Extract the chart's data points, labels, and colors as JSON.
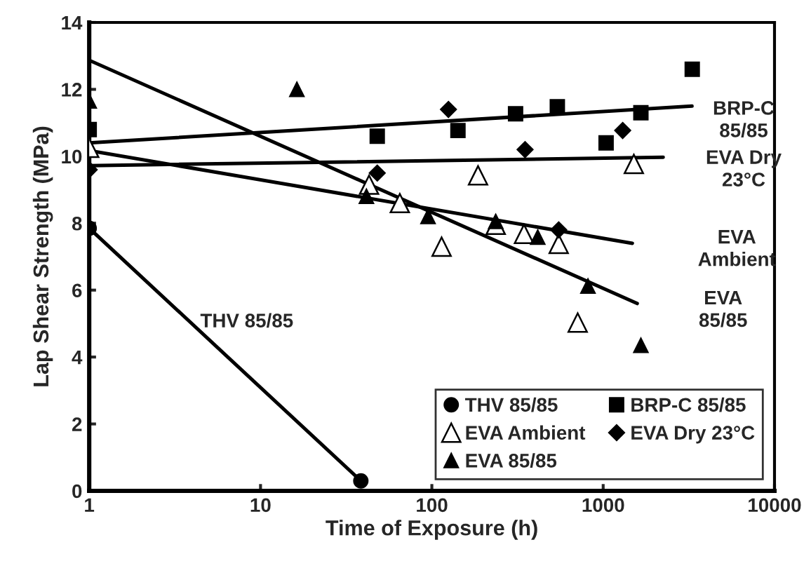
{
  "chart_data": {
    "type": "scatter",
    "xlabel": "Time of Exposure (h)",
    "ylabel": "Lap Shear Strength (MPa)",
    "log": "x",
    "xlim": [
      1,
      10000
    ],
    "xticks": [
      1,
      10,
      100,
      1000,
      10000
    ],
    "ylim": [
      0,
      14
    ],
    "yticks": [
      0,
      2,
      4,
      6,
      8,
      10,
      12,
      14
    ],
    "grid": false,
    "legend": "bottom right",
    "series": [
      {
        "name": "THV 85/85",
        "marker": "circle",
        "color": "#000000",
        "x": [
          1,
          38.5
        ],
        "values": [
          7.85,
          0.3
        ]
      },
      {
        "name": "BRP-C 85/85",
        "marker": "square",
        "color": "#000000",
        "x": [
          1,
          48,
          142,
          308,
          540,
          1040,
          1660,
          3310
        ],
        "values": [
          10.8,
          10.6,
          10.77,
          11.27,
          11.48,
          10.4,
          11.3,
          12.6
        ]
      },
      {
        "name": "EVA Ambient",
        "marker": "triangle",
        "color": "#ffffff",
        "x": [
          1,
          43,
          65,
          114,
          186,
          236,
          345,
          550,
          710,
          1510
        ],
        "values": [
          10.25,
          9.15,
          8.6,
          7.3,
          9.43,
          7.95,
          7.68,
          7.38,
          5.03,
          9.77
        ]
      },
      {
        "name": "EVA Dry 23°C",
        "marker": "diamond",
        "color": "#000000",
        "x": [
          1,
          48,
          125,
          350,
          550,
          1300
        ],
        "values": [
          9.6,
          9.5,
          11.4,
          10.2,
          7.8,
          10.77
        ]
      },
      {
        "name": "EVA 85/85",
        "marker": "triangle",
        "color": "#000000",
        "x": [
          1,
          16.3,
          41.5,
          95,
          236,
          415,
          815,
          1660
        ],
        "values": [
          11.65,
          12.0,
          8.8,
          8.2,
          8.05,
          7.58,
          6.12,
          4.35
        ]
      },
      {
        "type": "line",
        "color": "#000000",
        "x": [
          1,
          38.5
        ],
        "values": [
          7.85,
          0.3
        ]
      },
      {
        "type": "line",
        "color": "#000000",
        "x": [
          1,
          3300
        ],
        "values": [
          10.4,
          11.5
        ]
      },
      {
        "type": "line",
        "color": "#000000",
        "x": [
          1,
          2240
        ],
        "values": [
          9.72,
          9.97
        ]
      },
      {
        "type": "line",
        "color": "#000000",
        "x": [
          1,
          1480
        ],
        "values": [
          10.17,
          7.4
        ]
      },
      {
        "type": "line",
        "color": "#000000",
        "x": [
          1,
          1580
        ],
        "values": [
          12.87,
          5.6
        ]
      }
    ],
    "annotations": [
      "BRP-C\n85/85",
      "EVA Dry\n23°C",
      "EVA\nAmbient",
      "EVA\n85/85",
      "THV 85/85"
    ]
  }
}
